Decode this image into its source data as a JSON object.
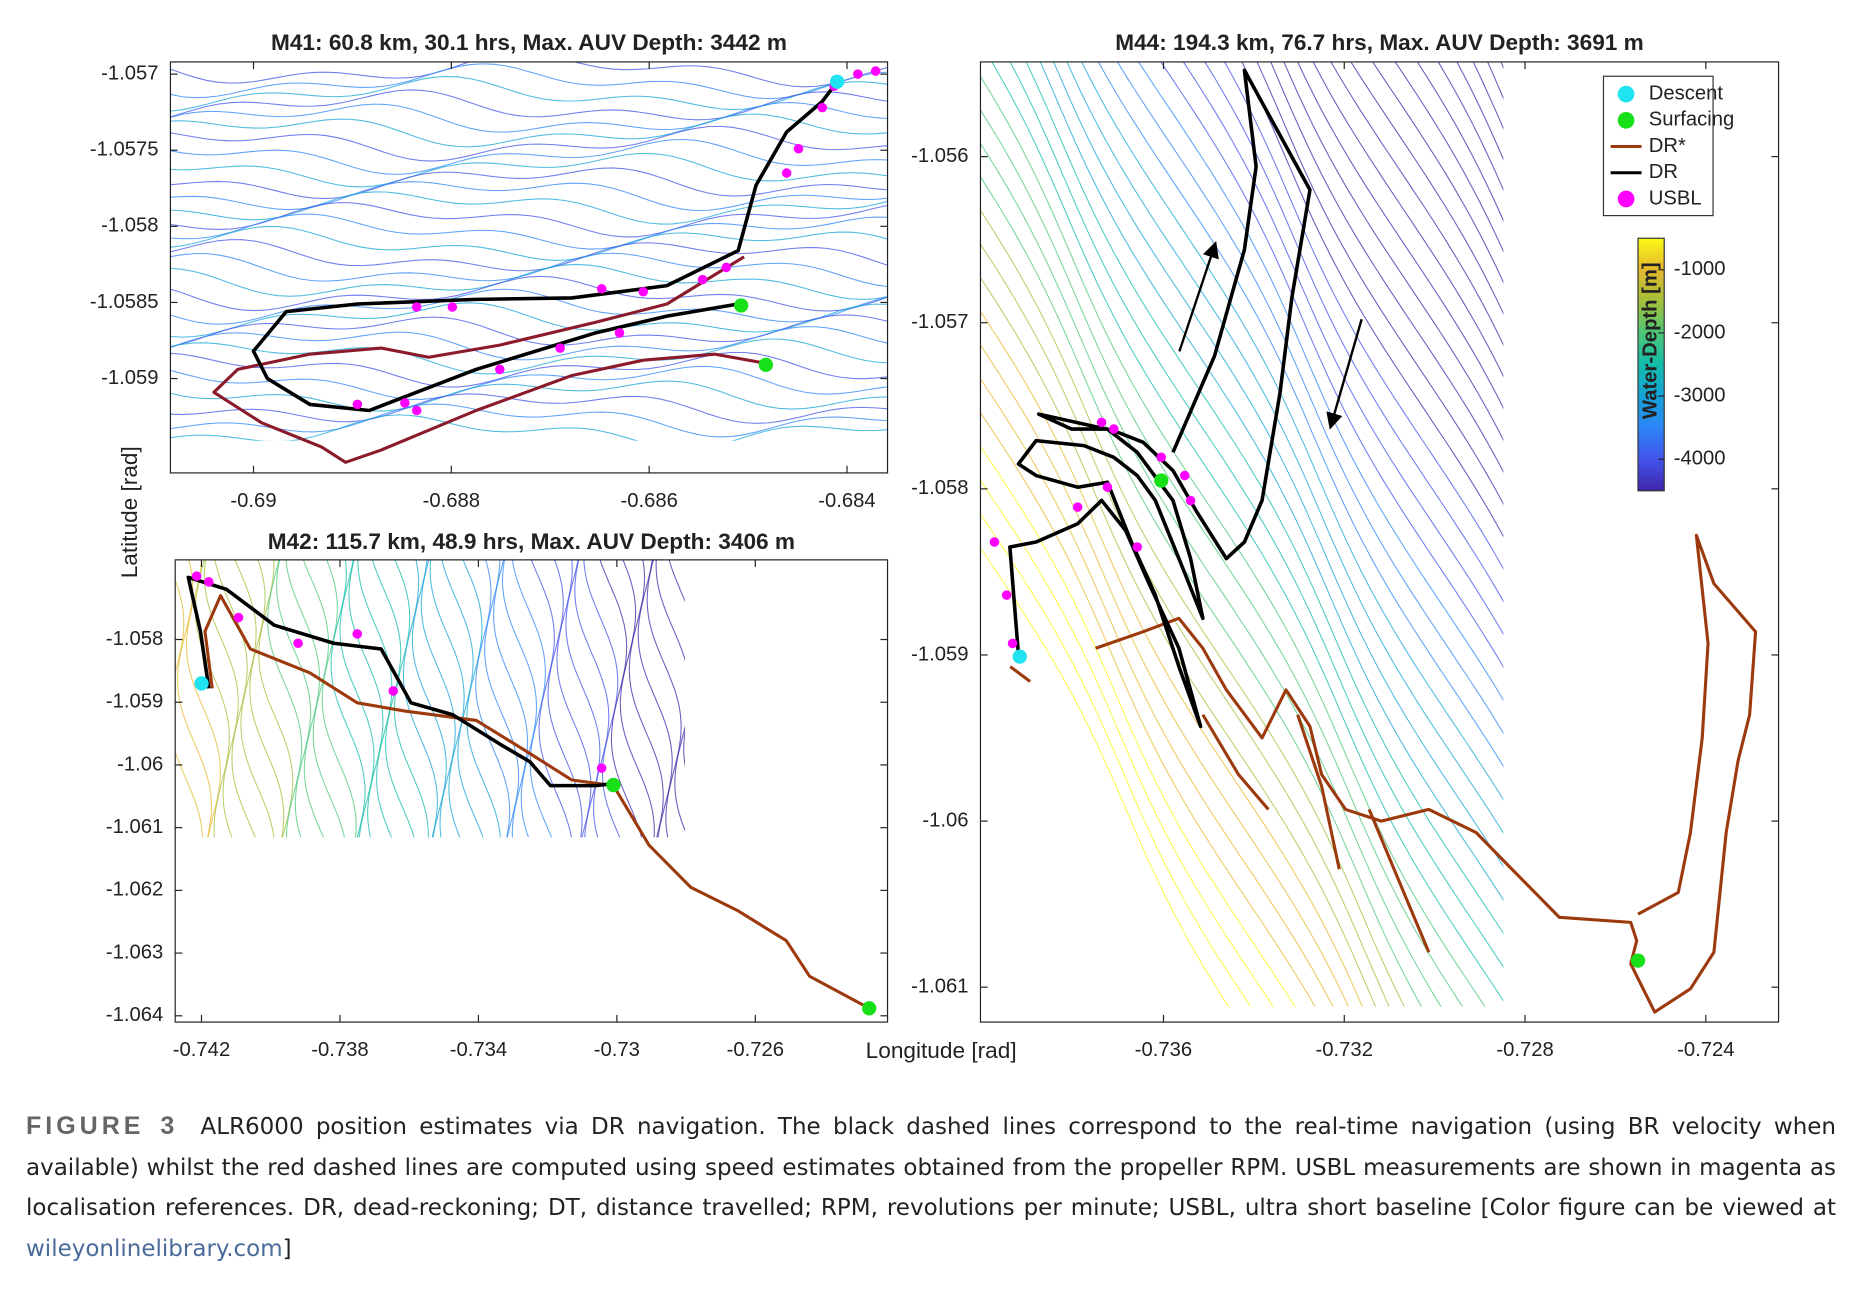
{
  "chart_data": [
    {
      "type": "line",
      "title": "M41: 60.8 km, 30.1 hrs, Max. AUV Depth: 3442 m",
      "ylabel": "Latitude [rad]",
      "xlim": [
        -0.69084,
        -0.68359
      ],
      "ylim": [
        -1.05962,
        -1.05692
      ],
      "xticks": [
        -0.69,
        -0.688,
        -0.686,
        -0.684
      ],
      "yticks": [
        -1.057,
        -1.0575,
        -1.058,
        -1.0585,
        -1.059
      ],
      "series": [
        {
          "type": "line",
          "color": "#8b1a2b",
          "x": [
            -0.68482,
            -0.68534,
            -0.68606,
            -0.68678,
            -0.68775,
            -0.68871,
            -0.68907,
            -0.68931,
            -0.68992,
            -0.6904,
            -0.69016,
            -0.68943,
            -0.68871,
            -0.68823,
            -0.68751,
            -0.68654,
            -0.68582,
            -0.68504
          ],
          "values": [
            -1.0589,
            -1.05884,
            -1.05888,
            -1.05898,
            -1.05921,
            -1.05947,
            -1.05955,
            -1.05945,
            -1.05929,
            -1.05909,
            -1.05894,
            -1.05884,
            -1.0588,
            -1.05886,
            -1.05878,
            -1.05863,
            -1.05851,
            -1.0582
          ]
        },
        {
          "type": "line",
          "color": "#000000",
          "x": [
            -0.6841,
            -0.68425,
            -0.68461,
            -0.68492,
            -0.6851,
            -0.68582,
            -0.68678,
            -0.68775,
            -0.68895,
            -0.68967,
            -0.69,
            -0.68986,
            -0.68943,
            -0.68883,
            -0.68775,
            -0.68654,
            -0.68582,
            -0.6851
          ],
          "values": [
            -1.05705,
            -1.05718,
            -1.05738,
            -1.05773,
            -1.05816,
            -1.05839,
            -1.05847,
            -1.05848,
            -1.05851,
            -1.05856,
            -1.05882,
            -1.059,
            -1.05917,
            -1.05921,
            -1.05894,
            -1.0587,
            -1.05859,
            -1.05851
          ]
        },
        {
          "type": "scatter",
          "color": "#ff00ff",
          "size": 4,
          "x": [
            -0.68371,
            -0.68389,
            -0.68413,
            -0.68425,
            -0.68449,
            -0.68461,
            -0.68522,
            -0.68546,
            -0.68606,
            -0.68648,
            -0.68799,
            -0.68835,
            -0.68751,
            -0.6869,
            -0.6863,
            -0.68895,
            -0.68847,
            -0.68835
          ],
          "values": [
            -1.05698,
            -1.057,
            -1.05708,
            -1.05722,
            -1.05749,
            -1.05765,
            -1.05827,
            -1.05835,
            -1.05843,
            -1.05841,
            -1.05853,
            -1.05853,
            -1.05894,
            -1.0588,
            -1.0587,
            -1.05917,
            -1.05916,
            -1.05921
          ]
        },
        {
          "type": "scatter",
          "color": "#1fe3f0",
          "size": 6,
          "x": [
            -0.6841
          ],
          "values": [
            -1.05705
          ]
        },
        {
          "type": "scatter",
          "color": "#18e018",
          "size": 6,
          "x": [
            -0.68507,
            -0.68482
          ],
          "values": [
            -1.05852,
            -1.05891
          ]
        }
      ]
    },
    {
      "type": "line",
      "title": "M42: 115.7 km, 48.9 hrs, Max. AUV Depth: 3406 m",
      "xlabel": "Longitude [rad]",
      "xlim": [
        -0.74276,
        -0.72218
      ],
      "ylim": [
        -1.0641,
        -1.05673
      ],
      "xticks": [
        -0.742,
        -0.738,
        -0.734,
        -0.73,
        -0.726
      ],
      "yticks": [
        -1.058,
        -1.059,
        -1.06,
        -1.061,
        -1.062,
        -1.063,
        -1.064
      ],
      "series": [
        {
          "type": "line",
          "color": "#9c3a0e",
          "x": [
            -0.74169,
            -0.7419,
            -0.74145,
            -0.74059,
            -0.73887,
            -0.7375,
            -0.73612,
            -0.73406,
            -0.73268,
            -0.7313,
            -0.7301,
            -0.72907,
            -0.72787,
            -0.72649,
            -0.72511,
            -0.72443,
            -0.72271
          ],
          "values": [
            -1.05878,
            -1.05787,
            -1.0573,
            -1.05815,
            -1.05853,
            -1.05901,
            -1.05914,
            -1.05929,
            -1.05976,
            -1.06024,
            -1.06033,
            -1.06128,
            -1.06195,
            -1.06233,
            -1.0628,
            -1.06337,
            -1.06388
          ]
        },
        {
          "type": "line",
          "color": "#000000",
          "x": [
            -0.74179,
            -0.74203,
            -0.74238,
            -0.74128,
            -0.7399,
            -0.73818,
            -0.73681,
            -0.73595,
            -0.73474,
            -0.73337,
            -0.73251,
            -0.73192,
            -0.73062,
            -0.7301
          ],
          "values": [
            -1.05878,
            -1.05787,
            -1.05701,
            -1.0572,
            -1.05777,
            -1.05806,
            -1.05815,
            -1.05901,
            -1.0592,
            -1.05967,
            -1.05995,
            -1.06033,
            -1.06033,
            -1.0603
          ]
        },
        {
          "type": "scatter",
          "color": "#ff00ff",
          "size": 4,
          "x": [
            -0.74214,
            -0.74179,
            -0.74093,
            -0.73921,
            -0.7375,
            -0.73646,
            -0.73044
          ],
          "values": [
            -1.05699,
            -1.05708,
            -1.05765,
            -1.05806,
            -1.05791,
            -1.05882,
            -1.06005
          ]
        },
        {
          "type": "scatter",
          "color": "#1fe3f0",
          "size": 6,
          "x": [
            -0.742
          ],
          "values": [
            -1.0587
          ]
        },
        {
          "type": "scatter",
          "color": "#18e018",
          "size": 6,
          "x": [
            -0.7301,
            -0.72271
          ],
          "values": [
            -1.06032,
            -1.06388
          ]
        }
      ]
    },
    {
      "type": "line",
      "title": "M44: 194.3 km, 76.7 hrs, Max. AUV Depth: 3691 m",
      "legend": "upper right",
      "xlim": [
        -0.74005,
        -0.72239
      ],
      "ylim": [
        -1.06121,
        -1.05543
      ],
      "xticks": [
        -0.736,
        -0.732,
        -0.728,
        -0.724
      ],
      "yticks": [
        -1.056,
        -1.057,
        -1.058,
        -1.059,
        -1.06,
        -1.061
      ],
      "colorbar": {
        "label": "Water-Depth [m]",
        "lim": [
          -4500,
          -500
        ],
        "ticks": [
          -1000,
          -2000,
          -3000,
          -4000
        ]
      },
      "series": [
        {
          "name": "Descent",
          "type": "scatter",
          "color": "#1fe3f0",
          "size": 6,
          "x": [
            -0.73918
          ],
          "values": [
            -1.05901
          ]
        },
        {
          "name": "Surfacing",
          "type": "scatter",
          "color": "#18e018",
          "size": 6,
          "x": [
            -0.73605,
            -0.7255
          ],
          "values": [
            -1.05795,
            -1.06084
          ]
        },
        {
          "name": "DR*",
          "type": "line",
          "color": "#9c3a0e",
          "x": [
            -0.7375,
            -0.73645,
            -0.73566,
            -0.73513,
            -0.73461,
            -0.73382,
            -0.73329,
            -0.73276,
            -0.7325,
            -0.73197,
            -0.73118,
            -0.73013,
            -0.72908,
            -0.72829,
            -0.72724,
            -0.72566,
            -0.72553,
            -0.72566,
            -0.72513,
            -0.72434,
            -0.72382,
            -0.72355,
            -0.72329,
            -0.72303,
            -0.7229,
            -0.72382,
            -0.72421,
            -0.72395,
            -0.72408,
            -0.72434,
            -0.72461,
            -0.7255,
            null,
            -0.73513,
            -0.73434,
            -0.73368,
            null,
            -0.73303,
            -0.7325,
            -0.73211,
            null,
            -0.73145,
            -0.73079,
            -0.73013,
            null,
            -0.73939,
            -0.73895
          ],
          "values": [
            -1.05896,
            -1.05886,
            -1.05878,
            -1.05896,
            -1.05921,
            -1.0595,
            -1.05921,
            -1.05943,
            -1.05972,
            -1.05993,
            -1.06,
            -1.05993,
            -1.06007,
            -1.06029,
            -1.06058,
            -1.06061,
            -1.06072,
            -1.06086,
            -1.06115,
            -1.06101,
            -1.06079,
            -1.06007,
            -1.05964,
            -1.05936,
            -1.05886,
            -1.05857,
            -1.05828,
            -1.05893,
            -1.0595,
            -1.06007,
            -1.06043,
            -1.06056,
            null,
            -1.05936,
            -1.05972,
            -1.05993,
            null,
            -1.05936,
            -1.05979,
            -1.06029,
            null,
            -1.05993,
            -1.06036,
            -1.06079,
            null,
            -1.05907,
            -1.05916
          ]
        },
        {
          "name": "DR",
          "type": "line",
          "color": "#000000",
          "x": [
            -0.73921,
            -0.7394,
            -0.73882,
            -0.7379,
            -0.73737,
            -0.73684,
            -0.73632,
            -0.73566,
            -0.73518,
            -0.73566,
            -0.73618,
            -0.73671,
            -0.73724,
            -0.7379,
            -0.73882,
            -0.73921,
            -0.73882,
            -0.73776,
            -0.7371,
            -0.73658,
            -0.73618,
            -0.73566,
            -0.73513,
            -0.7354,
            -0.73579,
            -0.73658,
            -0.73724,
            -0.73803,
            -0.73876,
            -0.7371,
            -0.73645,
            -0.73579,
            -0.73526,
            -0.73461,
            -0.73421,
            -0.73382,
            -0.73342,
            -0.73316,
            -0.73276,
            -0.73421,
            -0.73395,
            -0.73421,
            -0.73487,
            -0.73579
          ],
          "values": [
            -1.059,
            -1.05835,
            -1.05832,
            -1.05821,
            -1.05807,
            -1.05825,
            -1.05857,
            -1.05896,
            -1.05943,
            -1.05907,
            -1.05864,
            -1.05832,
            -1.05796,
            -1.05799,
            -1.05792,
            -1.05785,
            -1.05771,
            -1.05774,
            -1.05781,
            -1.05792,
            -1.05807,
            -1.05842,
            -1.05878,
            -1.05842,
            -1.05807,
            -1.05778,
            -1.05764,
            -1.05764,
            -1.05755,
            -1.05765,
            -1.05772,
            -1.05789,
            -1.05814,
            -1.05842,
            -1.05832,
            -1.05807,
            -1.05742,
            -1.05685,
            -1.0562,
            -1.05548,
            -1.05606,
            -1.05656,
            -1.0572,
            -1.05778
          ]
        },
        {
          "name": "USBL",
          "type": "scatter",
          "color": "#ff00ff",
          "size": 4,
          "x": [
            -0.73974,
            -0.73947,
            -0.73934,
            -0.73737,
            -0.7371,
            -0.7379,
            -0.73724,
            -0.73605,
            -0.73553,
            -0.7354,
            -0.73658
          ],
          "values": [
            -1.05832,
            -1.05864,
            -1.05893,
            -1.0576,
            -1.05764,
            -1.05811,
            -1.05799,
            -1.05781,
            -1.05792,
            -1.05807,
            -1.05835
          ]
        }
      ]
    }
  ],
  "caption": {
    "label": "FIGURE 3",
    "text": "ALR6000 position estimates via DR navigation. The black dashed lines correspond to the real-time navigation (using BR velocity when available) whilst the red dashed lines are computed using speed estimates obtained from the propeller RPM. USBL measurements are shown in magenta as localisation references. DR, dead-reckoning; DT, distance travelled; RPM, revolutions per minute; USBL, ultra short baseline [Color figure can be viewed at",
    "link": "wileyonlinelibrary.com",
    "end": "]"
  }
}
